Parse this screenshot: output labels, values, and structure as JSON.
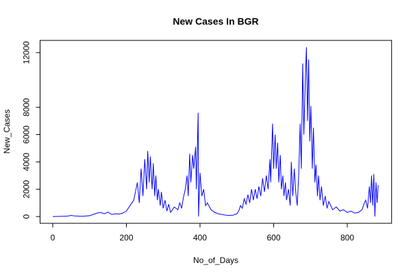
{
  "chart_data": {
    "type": "line",
    "title": "New Cases In BGR",
    "x_label": "No_of_Days",
    "y_label": "New_Cases",
    "color": "#0000ff",
    "xlim": [
      -34.4,
      920.4
    ],
    "xticks": [
      0,
      200,
      400,
      600,
      800
    ],
    "ylim": [
      -496,
      12896
    ],
    "yticks": [
      0,
      2000,
      4000,
      6000,
      8000,
      12000
    ],
    "x": [
      0,
      20,
      40,
      50,
      60,
      80,
      100,
      110,
      120,
      130,
      140,
      150,
      160,
      170,
      180,
      190,
      200,
      210,
      220,
      230,
      235,
      240,
      245,
      250,
      255,
      258,
      262,
      265,
      270,
      273,
      277,
      280,
      284,
      287,
      292,
      295,
      300,
      305,
      310,
      315,
      320,
      330,
      340,
      345,
      350,
      355,
      360,
      365,
      368,
      372,
      375,
      380,
      383,
      388,
      390,
      395,
      396,
      400,
      405,
      410,
      415,
      420,
      430,
      440,
      450,
      460,
      470,
      480,
      490,
      500,
      505,
      510,
      515,
      520,
      525,
      530,
      535,
      540,
      545,
      550,
      555,
      560,
      565,
      570,
      575,
      580,
      585,
      590,
      592,
      597,
      600,
      604,
      607,
      611,
      614,
      618,
      621,
      625,
      628,
      632,
      635,
      640,
      645,
      648,
      652,
      656,
      660,
      664,
      668,
      672,
      675,
      679,
      682,
      686,
      689,
      692,
      695,
      698,
      701,
      705,
      708,
      712,
      715,
      719,
      722,
      726,
      730,
      735,
      740,
      745,
      750,
      760,
      770,
      780,
      790,
      800,
      810,
      820,
      830,
      840,
      845,
      850,
      855,
      860,
      863,
      866,
      869,
      872,
      875,
      878,
      881,
      884
    ],
    "values": [
      0,
      10,
      30,
      80,
      40,
      20,
      60,
      150,
      250,
      300,
      200,
      320,
      150,
      200,
      180,
      250,
      400,
      800,
      1200,
      2500,
      1000,
      3500,
      1500,
      4200,
      2000,
      4800,
      2500,
      4400,
      2000,
      3900,
      1500,
      3000,
      1200,
      2000,
      800,
      1800,
      600,
      1200,
      400,
      900,
      300,
      700,
      500,
      1000,
      600,
      1400,
      2000,
      3000,
      1500,
      4600,
      2500,
      4500,
      3500,
      5100,
      2000,
      7600,
      0,
      3200,
      1500,
      2000,
      800,
      1000,
      500,
      300,
      200,
      150,
      100,
      80,
      100,
      200,
      400,
      800,
      600,
      1300,
      900,
      1600,
      1000,
      2000,
      1200,
      2000,
      1300,
      2200,
      1500,
      2800,
      1800,
      3000,
      2000,
      4200,
      2500,
      6800,
      3500,
      6000,
      3500,
      5400,
      2500,
      4500,
      2000,
      3000,
      1500,
      2500,
      1200,
      2000,
      800,
      4000,
      1500,
      3500,
      1800,
      800,
      3000,
      6800,
      3500,
      11200,
      6000,
      10000,
      12400,
      7000,
      11500,
      5500,
      8100,
      3500,
      6500,
      2500,
      3800,
      1500,
      3000,
      1200,
      2200,
      800,
      1500,
      600,
      1100,
      500,
      700,
      400,
      500,
      300,
      400,
      250,
      300,
      500,
      900,
      1200,
      600,
      2200,
      1000,
      3000,
      800,
      3100,
      0,
      2500,
      1000,
      2300
    ]
  }
}
